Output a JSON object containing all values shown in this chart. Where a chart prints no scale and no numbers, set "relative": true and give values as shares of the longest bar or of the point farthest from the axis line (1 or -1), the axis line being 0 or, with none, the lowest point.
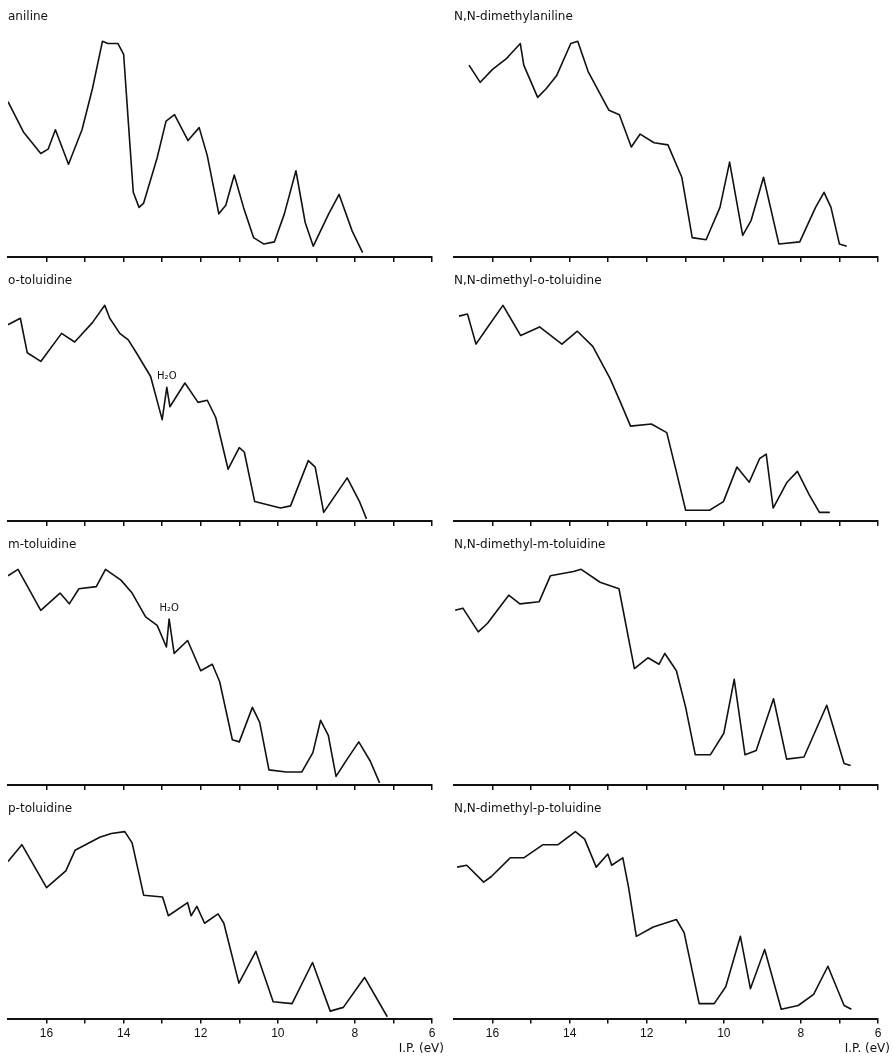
{
  "chart_data": [
    {
      "type": "line",
      "title": "aniline",
      "relative": true,
      "xlim": [
        17,
        6
      ],
      "xticks": [
        {
          "value": 16,
          "label": null
        },
        {
          "value": 15,
          "label": null
        },
        {
          "value": 14,
          "label": null
        },
        {
          "value": 13,
          "label": null
        },
        {
          "value": 12,
          "label": null
        },
        {
          "value": 11,
          "label": null
        },
        {
          "value": 10,
          "label": null
        },
        {
          "value": 9,
          "label": null
        },
        {
          "value": 8,
          "label": null
        },
        {
          "value": 7,
          "label": null
        },
        {
          "value": 6,
          "label": null
        }
      ],
      "tick_labels": false,
      "marker": "none",
      "x": [
        17.0,
        16.6,
        16.15,
        15.96,
        15.77,
        15.43,
        15.08,
        14.81,
        14.55,
        14.41,
        14.15,
        14.0,
        13.88,
        13.75,
        13.6,
        13.48,
        13.13,
        12.9,
        12.68,
        12.33,
        12.04,
        11.83,
        11.53,
        11.35,
        11.13,
        10.89,
        10.63,
        10.36,
        10.09,
        9.83,
        9.53,
        9.29,
        9.08,
        8.68,
        8.41,
        8.07,
        7.8
      ],
      "series": [
        {
          "color": "#111111",
          "values": [
            0.72,
            0.58,
            0.48,
            0.5,
            0.59,
            0.43,
            0.59,
            0.78,
            1.0,
            0.99,
            0.99,
            0.94,
            0.63,
            0.3,
            0.23,
            0.25,
            0.46,
            0.63,
            0.66,
            0.54,
            0.6,
            0.47,
            0.2,
            0.24,
            0.38,
            0.23,
            0.09,
            0.06,
            0.07,
            0.2,
            0.4,
            0.16,
            0.05,
            0.2,
            0.29,
            0.12,
            0.02
          ]
        }
      ]
    },
    {
      "type": "line",
      "title": "N,N-dimethylaniline",
      "relative": true,
      "xlim": [
        17,
        6
      ],
      "xticks": [
        {
          "value": 16,
          "label": null
        },
        {
          "value": 15,
          "label": null
        },
        {
          "value": 14,
          "label": null
        },
        {
          "value": 13,
          "label": null
        },
        {
          "value": 12,
          "label": null
        },
        {
          "value": 11,
          "label": null
        },
        {
          "value": 10,
          "label": null
        },
        {
          "value": 9,
          "label": null
        },
        {
          "value": 8,
          "label": null
        },
        {
          "value": 7,
          "label": null
        },
        {
          "value": 6,
          "label": null
        }
      ],
      "tick_labels": false,
      "marker": "none",
      "x": [
        16.61,
        16.32,
        16.0,
        15.64,
        15.28,
        15.19,
        14.83,
        14.61,
        14.34,
        13.97,
        13.79,
        13.52,
        12.98,
        12.71,
        12.4,
        12.17,
        11.81,
        11.45,
        11.09,
        10.82,
        10.46,
        10.1,
        9.85,
        9.51,
        9.29,
        8.97,
        8.57,
        8.03,
        7.62,
        7.4,
        7.22,
        7.0,
        6.81
      ],
      "series": [
        {
          "color": "#111111",
          "values": [
            0.89,
            0.81,
            0.87,
            0.92,
            0.99,
            0.89,
            0.74,
            0.78,
            0.84,
            0.99,
            1.0,
            0.86,
            0.68,
            0.66,
            0.51,
            0.57,
            0.53,
            0.52,
            0.37,
            0.09,
            0.08,
            0.23,
            0.44,
            0.1,
            0.17,
            0.37,
            0.06,
            0.07,
            0.23,
            0.3,
            0.23,
            0.06,
            0.05
          ]
        }
      ]
    },
    {
      "type": "line",
      "title": "o-toluidine",
      "relative": true,
      "xlim": [
        17,
        6
      ],
      "xticks": [
        {
          "value": 16,
          "label": null
        },
        {
          "value": 15,
          "label": null
        },
        {
          "value": 14,
          "label": null
        },
        {
          "value": 13,
          "label": null
        },
        {
          "value": 12,
          "label": null
        },
        {
          "value": 11,
          "label": null
        },
        {
          "value": 10,
          "label": null
        },
        {
          "value": 9,
          "label": null
        },
        {
          "value": 8,
          "label": null
        },
        {
          "value": 7,
          "label": null
        },
        {
          "value": 6,
          "label": null
        }
      ],
      "tick_labels": false,
      "marker": "none",
      "annotations": [
        {
          "text": "H₂O",
          "x": 12.88,
          "y": 0.62
        }
      ],
      "x": [
        17.0,
        16.68,
        16.5,
        16.15,
        15.61,
        15.27,
        14.81,
        14.49,
        14.36,
        14.1,
        13.88,
        13.67,
        13.3,
        13.0,
        12.88,
        12.8,
        12.41,
        12.07,
        11.83,
        11.61,
        11.29,
        11.0,
        10.87,
        10.6,
        9.93,
        9.67,
        9.21,
        9.03,
        8.81,
        8.2,
        7.88,
        7.7
      ],
      "series": [
        {
          "color": "#111111",
          "values": [
            0.91,
            0.94,
            0.78,
            0.74,
            0.87,
            0.83,
            0.92,
            1.0,
            0.94,
            0.87,
            0.84,
            0.78,
            0.67,
            0.47,
            0.62,
            0.53,
            0.64,
            0.55,
            0.56,
            0.48,
            0.24,
            0.34,
            0.32,
            0.09,
            0.06,
            0.07,
            0.28,
            0.25,
            0.04,
            0.2,
            0.09,
            0.01
          ]
        }
      ]
    },
    {
      "type": "line",
      "title": "N,N-dimethyl-o-toluidine",
      "relative": true,
      "xlim": [
        17,
        6
      ],
      "xticks": [
        {
          "value": 16,
          "label": null
        },
        {
          "value": 15,
          "label": null
        },
        {
          "value": 14,
          "label": null
        },
        {
          "value": 13,
          "label": null
        },
        {
          "value": 12,
          "label": null
        },
        {
          "value": 11,
          "label": null
        },
        {
          "value": 10,
          "label": null
        },
        {
          "value": 9,
          "label": null
        },
        {
          "value": 8,
          "label": null
        },
        {
          "value": 7,
          "label": null
        },
        {
          "value": 6,
          "label": null
        }
      ],
      "tick_labels": false,
      "marker": "none",
      "x": [
        16.87,
        16.65,
        16.43,
        16.16,
        15.73,
        15.27,
        14.78,
        14.2,
        13.8,
        13.4,
        12.95,
        12.68,
        12.42,
        11.88,
        11.48,
        11.26,
        10.99,
        10.37,
        10.01,
        9.66,
        9.34,
        9.07,
        8.9,
        8.72,
        8.36,
        8.09,
        7.78,
        7.52,
        7.25
      ],
      "series": [
        {
          "color": "#111111",
          "values": [
            0.95,
            0.96,
            0.82,
            0.89,
            1.0,
            0.86,
            0.9,
            0.82,
            0.88,
            0.81,
            0.66,
            0.55,
            0.44,
            0.45,
            0.41,
            0.25,
            0.05,
            0.05,
            0.09,
            0.25,
            0.18,
            0.29,
            0.31,
            0.06,
            0.18,
            0.23,
            0.12,
            0.04,
            0.04
          ]
        }
      ]
    },
    {
      "type": "line",
      "title": "m-toluidine",
      "relative": true,
      "xlim": [
        17,
        6
      ],
      "xticks": [
        {
          "value": 16,
          "label": null
        },
        {
          "value": 15,
          "label": null
        },
        {
          "value": 14,
          "label": null
        },
        {
          "value": 13,
          "label": null
        },
        {
          "value": 12,
          "label": null
        },
        {
          "value": 11,
          "label": null
        },
        {
          "value": 10,
          "label": null
        },
        {
          "value": 9,
          "label": null
        },
        {
          "value": 8,
          "label": null
        },
        {
          "value": 7,
          "label": null
        },
        {
          "value": 6,
          "label": null
        }
      ],
      "tick_labels": false,
      "marker": "none",
      "annotations": [
        {
          "text": "H₂O",
          "x": 12.82,
          "y": 0.77
        }
      ],
      "x": [
        17.0,
        16.74,
        16.15,
        15.65,
        15.41,
        15.16,
        14.71,
        14.47,
        14.07,
        13.78,
        13.43,
        13.13,
        12.89,
        12.82,
        12.69,
        12.34,
        12.0,
        11.7,
        11.51,
        11.18,
        11.0,
        10.66,
        10.47,
        10.23,
        9.78,
        9.38,
        9.09,
        8.89,
        8.69,
        8.49,
        8.2,
        7.9,
        7.6,
        7.36
      ],
      "series": [
        {
          "color": "#111111",
          "values": [
            0.97,
            1.0,
            0.81,
            0.89,
            0.84,
            0.91,
            0.92,
            1.0,
            0.95,
            0.89,
            0.78,
            0.74,
            0.64,
            0.77,
            0.61,
            0.67,
            0.53,
            0.56,
            0.48,
            0.21,
            0.2,
            0.36,
            0.29,
            0.07,
            0.06,
            0.06,
            0.15,
            0.3,
            0.23,
            0.04,
            0.12,
            0.2,
            0.11,
            0.01
          ]
        }
      ]
    },
    {
      "type": "line",
      "title": "N,N-dimethyl-m-toluidine",
      "relative": true,
      "xlim": [
        17,
        6
      ],
      "xticks": [
        {
          "value": 16,
          "label": null
        },
        {
          "value": 15,
          "label": null
        },
        {
          "value": 14,
          "label": null
        },
        {
          "value": 13,
          "label": null
        },
        {
          "value": 12,
          "label": null
        },
        {
          "value": 11,
          "label": null
        },
        {
          "value": 10,
          "label": null
        },
        {
          "value": 9,
          "label": null
        },
        {
          "value": 8,
          "label": null
        },
        {
          "value": 7,
          "label": null
        },
        {
          "value": 6,
          "label": null
        }
      ],
      "tick_labels": false,
      "marker": "none",
      "x": [
        16.97,
        16.77,
        16.37,
        16.13,
        15.58,
        15.29,
        14.79,
        14.5,
        13.9,
        13.7,
        13.21,
        12.72,
        12.32,
        11.97,
        11.68,
        11.53,
        11.23,
        10.99,
        10.74,
        10.35,
        10.0,
        9.73,
        9.45,
        9.16,
        8.71,
        8.37,
        7.92,
        7.33,
        6.88,
        6.71
      ],
      "series": [
        {
          "color": "#111111",
          "values": [
            0.81,
            0.82,
            0.71,
            0.75,
            0.88,
            0.84,
            0.85,
            0.97,
            0.99,
            1.0,
            0.94,
            0.91,
            0.54,
            0.59,
            0.56,
            0.61,
            0.53,
            0.36,
            0.14,
            0.14,
            0.24,
            0.49,
            0.14,
            0.16,
            0.4,
            0.12,
            0.13,
            0.37,
            0.1,
            0.09
          ]
        }
      ]
    },
    {
      "type": "line",
      "title": "p-toluidine",
      "relative": true,
      "xlim": [
        17,
        6
      ],
      "xlabel": "I.P. (eV)",
      "xticks": [
        {
          "value": 16,
          "label": "16"
        },
        {
          "value": 15,
          "label": null
        },
        {
          "value": 14,
          "label": "14"
        },
        {
          "value": 13,
          "label": null
        },
        {
          "value": 12,
          "label": "12"
        },
        {
          "value": 11,
          "label": null
        },
        {
          "value": 10,
          "label": "10"
        },
        {
          "value": 9,
          "label": null
        },
        {
          "value": 8,
          "label": "8"
        },
        {
          "value": 7,
          "label": null
        },
        {
          "value": 6,
          "label": "6"
        }
      ],
      "tick_labels": "x",
      "marker": "none",
      "x": [
        17.0,
        16.64,
        16.0,
        15.5,
        15.26,
        14.62,
        14.32,
        13.97,
        13.78,
        13.48,
        12.99,
        12.84,
        12.34,
        12.25,
        12.1,
        11.9,
        11.55,
        11.4,
        11.01,
        10.57,
        10.12,
        9.63,
        9.1,
        8.64,
        8.3,
        7.75,
        7.16
      ],
      "series": [
        {
          "color": "#111111",
          "values": [
            0.84,
            0.93,
            0.7,
            0.79,
            0.9,
            0.97,
            0.99,
            1.0,
            0.94,
            0.66,
            0.65,
            0.55,
            0.62,
            0.55,
            0.6,
            0.51,
            0.56,
            0.51,
            0.19,
            0.36,
            0.09,
            0.08,
            0.3,
            0.04,
            0.06,
            0.22,
            0.01
          ]
        }
      ]
    },
    {
      "type": "line",
      "title": "N,N-dimethyl-p-toluidine",
      "relative": true,
      "xlim": [
        17,
        6
      ],
      "xlabel": "I.P. (eV)",
      "xticks": [
        {
          "value": 16,
          "label": "16"
        },
        {
          "value": 15,
          "label": null
        },
        {
          "value": 14,
          "label": "14"
        },
        {
          "value": 13,
          "label": null
        },
        {
          "value": 12,
          "label": "12"
        },
        {
          "value": 11,
          "label": null
        },
        {
          "value": 10,
          "label": "10"
        },
        {
          "value": 9,
          "label": null
        },
        {
          "value": 8,
          "label": "8"
        },
        {
          "value": 7,
          "label": null
        },
        {
          "value": 6,
          "label": "6"
        }
      ],
      "tick_labels": "x",
      "marker": "none",
      "x": [
        16.92,
        16.67,
        16.23,
        16.03,
        15.54,
        15.19,
        14.69,
        14.3,
        13.85,
        13.61,
        13.31,
        13.01,
        12.91,
        12.62,
        12.47,
        12.27,
        11.83,
        11.23,
        11.03,
        10.64,
        10.25,
        9.95,
        9.57,
        9.31,
        8.94,
        8.51,
        8.07,
        7.67,
        7.3,
        6.88,
        6.69
      ],
      "series": [
        {
          "color": "#111111",
          "values": [
            0.81,
            0.82,
            0.73,
            0.76,
            0.86,
            0.86,
            0.93,
            0.93,
            1.0,
            0.96,
            0.81,
            0.88,
            0.82,
            0.86,
            0.7,
            0.44,
            0.49,
            0.53,
            0.46,
            0.08,
            0.08,
            0.17,
            0.44,
            0.16,
            0.37,
            0.05,
            0.07,
            0.13,
            0.28,
            0.07,
            0.05
          ]
        }
      ]
    }
  ]
}
